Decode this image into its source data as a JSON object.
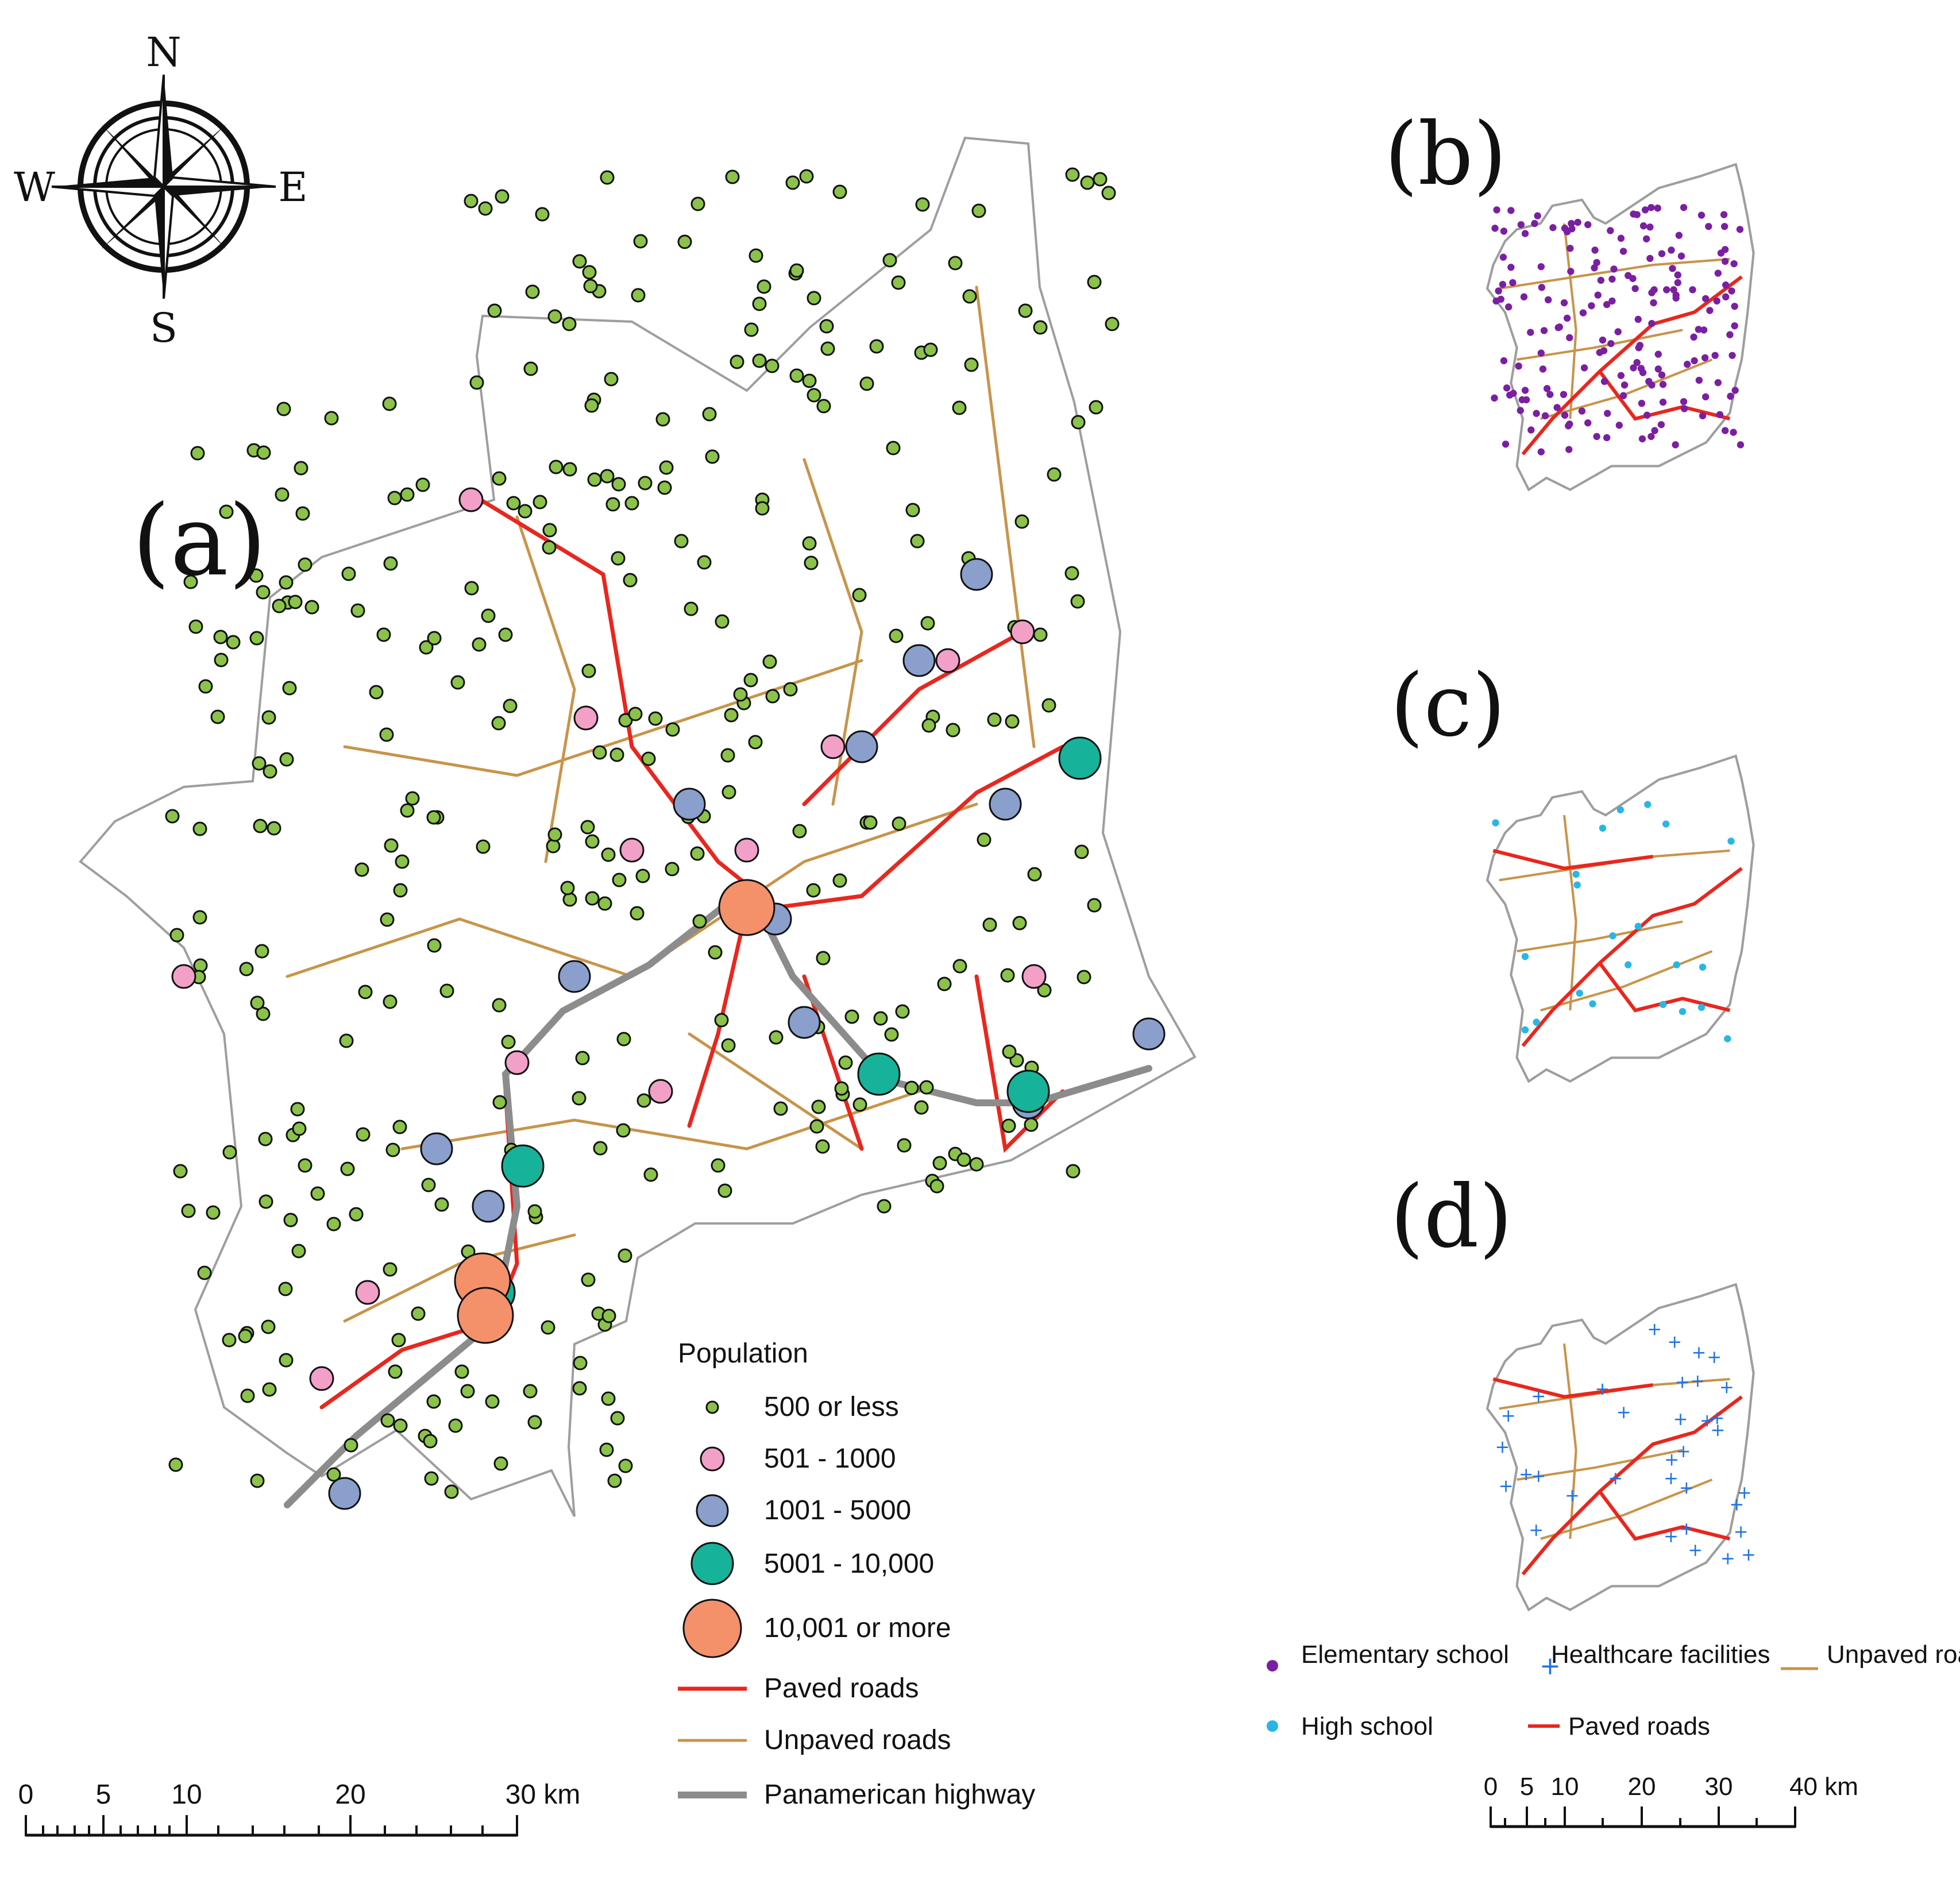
{
  "compass": {
    "n": "N",
    "s": "S",
    "e": "E",
    "w": "W"
  },
  "panels": {
    "a": "(a)",
    "b": "(b)",
    "c": "(c)",
    "d": "(d)"
  },
  "legend_a": {
    "title": "Population",
    "classes": [
      {
        "label": "500 or less",
        "color": "#8bc34a"
      },
      {
        "label": "501 - 1000",
        "color": "#f2a0c8"
      },
      {
        "label": "1001 - 5000",
        "color": "#8a9fcc"
      },
      {
        "label": "5001 - 10,000",
        "color": "#16b39a"
      },
      {
        "label": "10,001 or more",
        "color": "#f4916a"
      }
    ],
    "lines": [
      {
        "label": "Paved roads",
        "color": "#e8271e"
      },
      {
        "label": "Unpaved roads",
        "color": "#c8944a"
      },
      {
        "label": "Panamerican highway",
        "color": "#8c8c8c"
      }
    ]
  },
  "legend_bcd": {
    "elementary": "Elementary school",
    "elementary_color": "#7b1fa2",
    "high_school": "High school",
    "high_school_color": "#29b6e6",
    "healthcare": "Healthcare facilities",
    "healthcare_color": "#1e73e8",
    "paved": "Paved roads",
    "unpaved": "Unpaved roads"
  },
  "scale_a": {
    "ticks": [
      "0",
      "5",
      "10",
      "20",
      "30 km"
    ]
  },
  "scale_b": {
    "ticks": [
      "0",
      "5",
      "10",
      "20",
      "30",
      "40 km"
    ]
  }
}
